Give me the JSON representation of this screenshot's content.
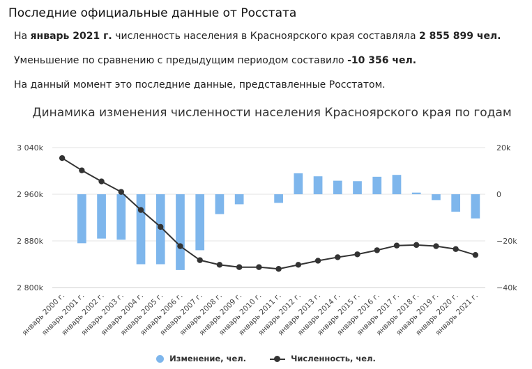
{
  "header": {
    "title": "Последние официальные данные от Росстата"
  },
  "summary": {
    "p1_prefix": "На ",
    "p1_period": "январь 2021 г.",
    "p1_middle": " численность населения в Красноярского края составляла ",
    "p1_value": "2 855 899 чел.",
    "p2_prefix": "Уменьшение по сравнению с предыдущим периодом составило ",
    "p2_value": "-10 356 чел.",
    "p3": "На данный момент это последние данные, представленные Росстатом."
  },
  "chart_data": {
    "type": "bar",
    "title": "Динамика изменения численности населения Красноярского края по годам",
    "categories": [
      "январь 2000 г.",
      "январь 2001 г.",
      "январь 2002 г.",
      "январь 2003 г.",
      "январь 2004 г.",
      "январь 2005 г.",
      "январь 2006 г.",
      "январь 2007 г.",
      "январь 2008 г.",
      "январь 2009 г.",
      "январь 2010 г.",
      "январь 2011 г.",
      "январь 2012 г.",
      "январь 2013 г.",
      "январь 2014 г.",
      "январь 2015 г.",
      "январь 2016 г.",
      "январь 2017 г.",
      "январь 2018 г.",
      "январь 2019 г.",
      "январь 2020 г.",
      "январь 2021 г."
    ],
    "series": [
      {
        "name": "Изменение, чел.",
        "type": "bar",
        "axis": "right",
        "color": "#7eb6ec",
        "values": [
          0,
          -21000,
          -19000,
          -19500,
          -30000,
          -30000,
          -32500,
          -24000,
          -8500,
          -4300,
          0,
          -3700,
          9000,
          7700,
          5800,
          5600,
          7500,
          8300,
          700,
          -2500,
          -7500,
          -10356
        ]
      },
      {
        "name": "Численность, чел.",
        "type": "line",
        "axis": "left",
        "color": "#333333",
        "values": [
          3022000,
          3001000,
          2982000,
          2964000,
          2933000,
          2904000,
          2871000,
          2847000,
          2839000,
          2835000,
          2835000,
          2832000,
          2839000,
          2846000,
          2852000,
          2857000,
          2864000,
          2872000,
          2873000,
          2871000,
          2866000,
          2855899
        ]
      }
    ],
    "yleft": {
      "ylim": [
        2800000,
        3040000
      ],
      "ticks": [
        2800000,
        2880000,
        2960000,
        3040000
      ],
      "tick_labels": [
        "2 800k",
        "2 880k",
        "2 960k",
        "3 040k"
      ]
    },
    "yright": {
      "ylim": [
        -40000,
        20000
      ],
      "ticks": [
        -40000,
        -20000,
        0,
        20000
      ],
      "tick_labels": [
        "−40k",
        "−20k",
        "0",
        "20k"
      ]
    },
    "grid": true,
    "legend": "bottom"
  }
}
